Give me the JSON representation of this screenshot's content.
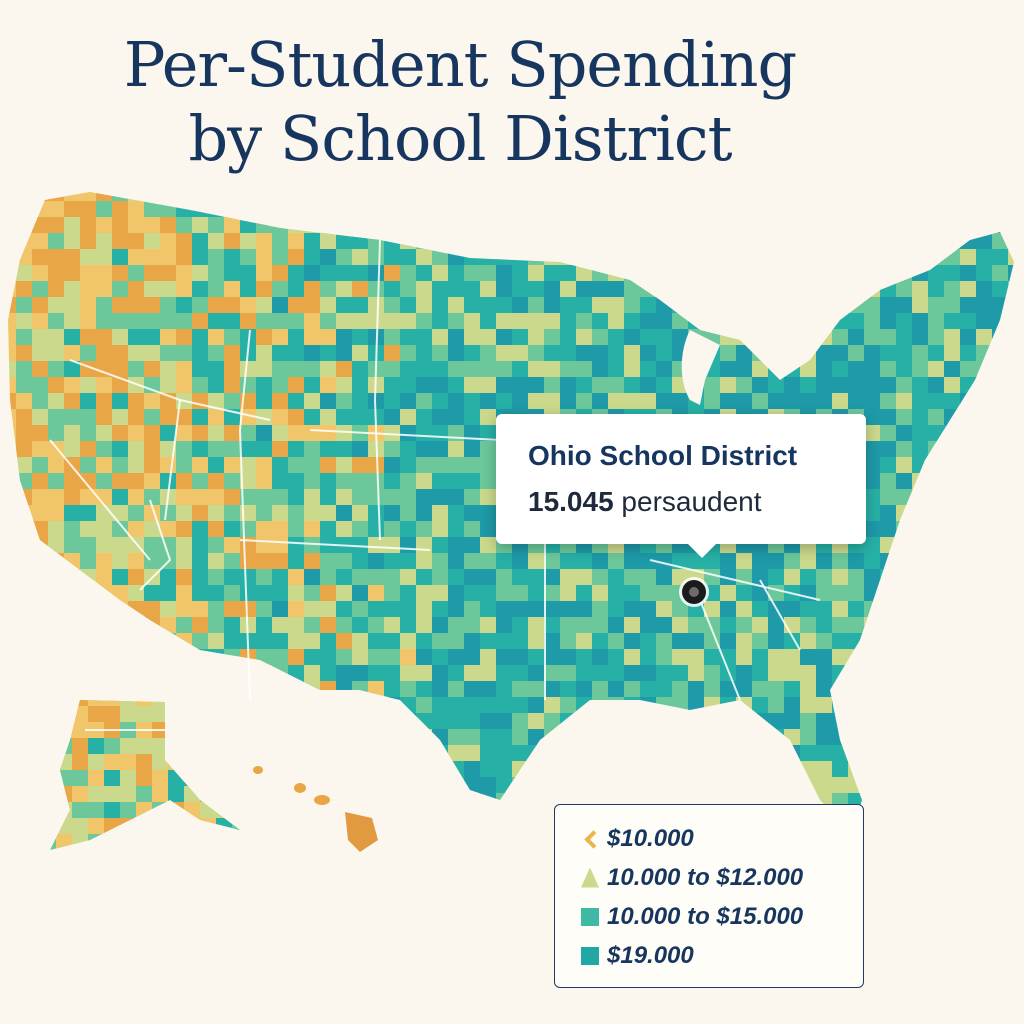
{
  "title": {
    "line1": "Per-Student Spending",
    "line2": "by School District"
  },
  "tooltip": {
    "title": "Ohio School District",
    "value": "15.045",
    "unit_text": "persaudent"
  },
  "legend": {
    "items": [
      {
        "label": "$10.000",
        "color": "#e9b64e",
        "icon": "chevron-left-icon"
      },
      {
        "label": "10.000 to $12.000",
        "color": "#cbd98c",
        "icon": "triangle-icon"
      },
      {
        "label": "10.000 to $15.000",
        "color": "#3fb9a4"
      },
      {
        "label": "$19.000",
        "color": "#21a8a6"
      }
    ]
  },
  "colors": {
    "title": "#17365f",
    "background": "#fbf7ee",
    "low": "#e8a646",
    "low_mid": "#f1c66a",
    "mid": "#cbd98c",
    "mid_high": "#6cc89a",
    "high": "#27b0a6",
    "highest": "#1e9aa8"
  }
}
